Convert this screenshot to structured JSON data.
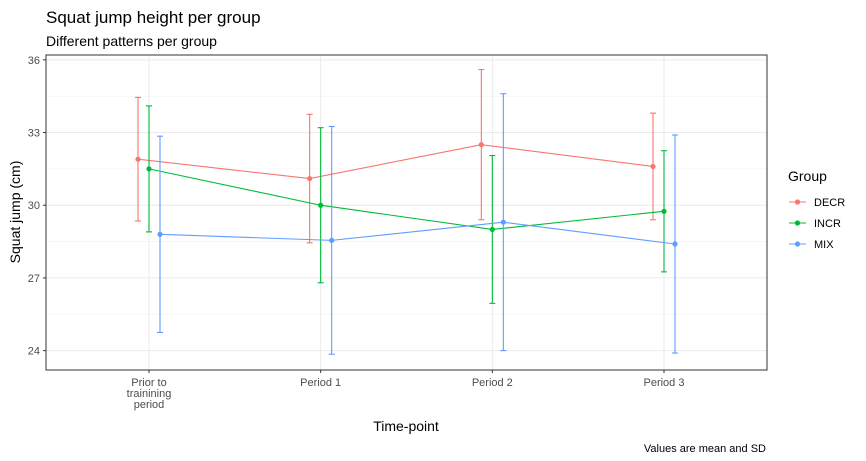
{
  "chart_data": {
    "type": "line",
    "title": "Squat jump height per group",
    "subtitle": "Different patterns per group",
    "xlabel": "Time-point",
    "ylabel": "Squat jump (cm)",
    "caption": "Values are mean and SD",
    "categories": [
      "Prior to\ntrainining\nperiod",
      "Period 1",
      "Period 2",
      "Period 3"
    ],
    "ylim": [
      23.2,
      36.2
    ],
    "yticks": [
      24,
      27,
      30,
      33,
      36
    ],
    "grid": true,
    "legend": {
      "title": "Group",
      "position": "right"
    },
    "series": [
      {
        "name": "DECR",
        "color": "#F8766D",
        "values": [
          31.9,
          31.1,
          32.5,
          31.6
        ],
        "sd": [
          2.55,
          2.65,
          3.1,
          2.2
        ]
      },
      {
        "name": "INCR",
        "color": "#00BA38",
        "values": [
          31.5,
          30.0,
          29.0,
          29.75
        ],
        "sd": [
          2.6,
          3.2,
          3.05,
          2.5
        ]
      },
      {
        "name": "MIX",
        "color": "#619CFF",
        "values": [
          28.8,
          28.55,
          29.3,
          28.4
        ],
        "sd": [
          4.05,
          4.7,
          5.3,
          4.5
        ]
      }
    ]
  }
}
